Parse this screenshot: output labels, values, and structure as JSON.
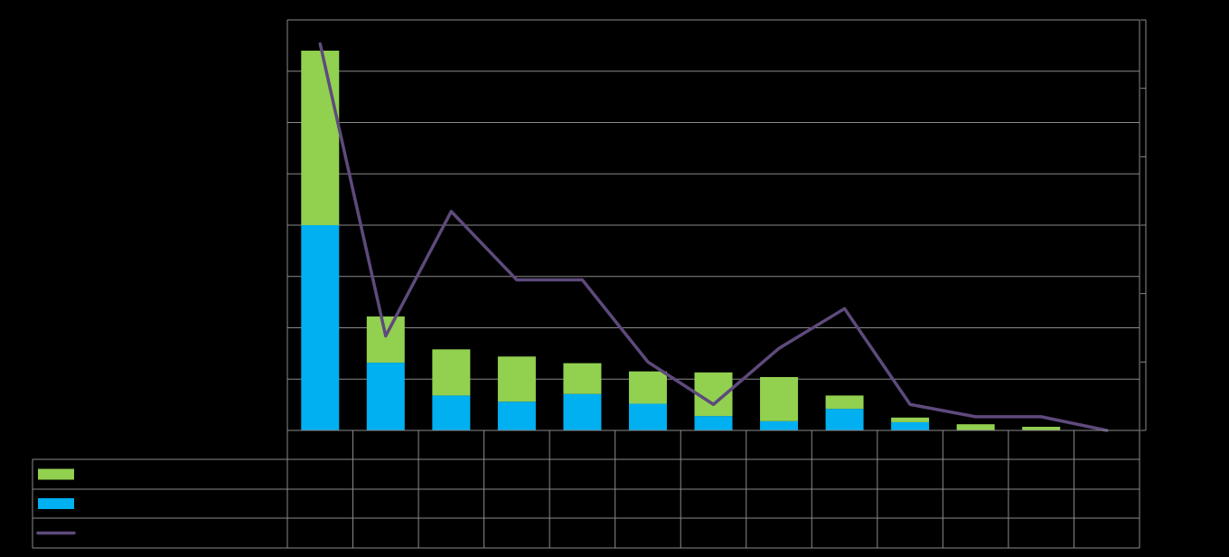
{
  "chart_data": {
    "type": "bar",
    "stacked": true,
    "categories": [
      "",
      "",
      "",
      "",
      "",
      "",
      "",
      "",
      "",
      "",
      "",
      "",
      ""
    ],
    "series": [
      {
        "key": "green",
        "type": "bar",
        "color": "#92d050",
        "values": [
          3.4,
          0.9,
          0.9,
          0.88,
          0.6,
          0.63,
          0.85,
          0.86,
          0.26,
          0.09,
          0.12,
          0.07,
          0.0
        ]
      },
      {
        "key": "blue",
        "type": "bar",
        "color": "#00b0f0",
        "values": [
          4.0,
          1.32,
          0.68,
          0.56,
          0.71,
          0.52,
          0.28,
          0.18,
          0.42,
          0.16,
          0.0,
          0.0,
          0.0
        ]
      },
      {
        "key": "purple",
        "type": "line",
        "color": "#5e4a7c",
        "axis": "right",
        "values": [
          5.65,
          1.38,
          3.2,
          2.2,
          2.2,
          1.0,
          0.38,
          1.2,
          1.78,
          0.38,
          0.2,
          0.2,
          0.0
        ]
      }
    ],
    "y_left": {
      "min": 0,
      "max": 8,
      "step": 1
    },
    "y_right": {
      "min": 0,
      "max": 6,
      "step": 1
    },
    "grid": true,
    "legend": "data-table-below"
  }
}
